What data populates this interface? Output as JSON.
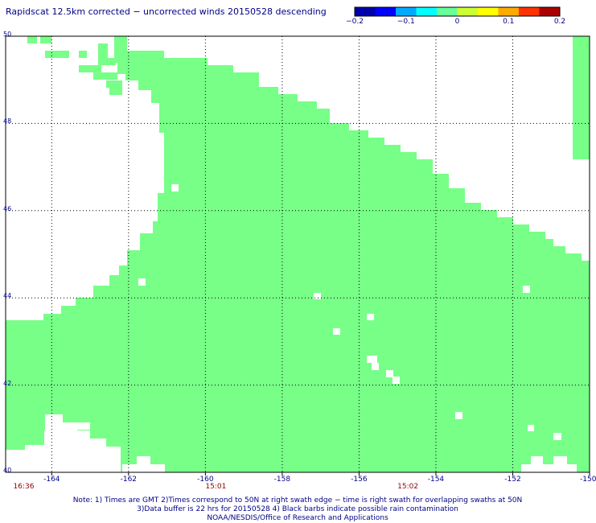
{
  "title": "Rapidscat 12.5km corrected − uncorrected winds 20150528 descending",
  "colorbar": {
    "ticks": [
      "−0.2",
      "−0.1",
      "0",
      "0.1",
      "0.2"
    ],
    "colors": [
      "#0000aa",
      "#0000ff",
      "#00aaff",
      "#00ffff",
      "#66ff99",
      "#ccff33",
      "#ffff00",
      "#ffaa00",
      "#ff3300",
      "#aa0000"
    ]
  },
  "chart_data": {
    "type": "heatmap",
    "title": "Rapidscat 12.5km corrected − uncorrected winds 20150528 descending",
    "xlabel": "",
    "ylabel": "",
    "xlim": [
      -165.2,
      -150
    ],
    "ylim": [
      40,
      50
    ],
    "xticks": [
      "-164",
      "-162",
      "-160",
      "-158",
      "-156",
      "-154",
      "-152",
      "-150"
    ],
    "yticks": [
      "40",
      "42",
      "44",
      "46",
      "48",
      "50"
    ],
    "grid": true,
    "value": 0,
    "swath_color": "#77ff88",
    "time_labels": [
      {
        "lon": -165.0,
        "text": "16:36"
      },
      {
        "lon": -160.0,
        "text": "15:01"
      },
      {
        "lon": -155.0,
        "text": "15:02"
      }
    ]
  },
  "footer": {
    "line1": "Note: 1) Times are GMT 2)Times correspond to 50N at right swath edge − time is right swath for overlapping swaths at 50N",
    "line2": "3)Data buffer is 22 hrs for 20150528 4) Black barbs indicate possible rain contamination",
    "line3": "NOAA/NESDIS/Office of Research and Applications"
  }
}
